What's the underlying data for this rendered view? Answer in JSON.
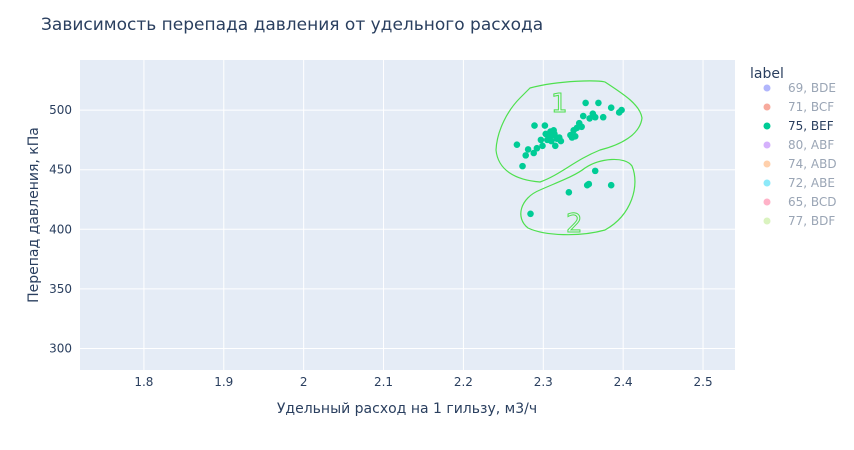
{
  "chart_data": {
    "type": "scatter",
    "title": "Зависимость перепада давления от удельного расхода",
    "xlabel": "Удельный  расход на 1 гильзу, м3/ч",
    "ylabel": "Перепад давления, кПа",
    "xlim": [
      1.72,
      2.54
    ],
    "ylim": [
      282,
      542
    ],
    "x_ticks": [
      1.8,
      1.9,
      2.0,
      2.1,
      2.2,
      2.3,
      2.4,
      2.5
    ],
    "x_tick_labels": [
      "1.8",
      "1.9",
      "2",
      "2.1",
      "2.2",
      "2.3",
      "2.4",
      "2.5"
    ],
    "y_ticks": [
      300,
      350,
      400,
      450,
      500
    ],
    "y_tick_labels": [
      "300",
      "350",
      "400",
      "450",
      "500"
    ],
    "grid": true,
    "legend_title": "label",
    "legend_position": "right",
    "series": [
      {
        "name": "69, BDE",
        "color": "#636efa",
        "visible": false,
        "points": []
      },
      {
        "name": "71, BCF",
        "color": "#ef553b",
        "visible": false,
        "points": []
      },
      {
        "name": "75, BEF",
        "color": "#00cc96",
        "visible": true,
        "points": [
          [
            2.284,
            413
          ],
          [
            2.332,
            431
          ],
          [
            2.355,
            437
          ],
          [
            2.357,
            438
          ],
          [
            2.365,
            449
          ],
          [
            2.385,
            437
          ],
          [
            2.267,
            471
          ],
          [
            2.274,
            453
          ],
          [
            2.278,
            462
          ],
          [
            2.281,
            467
          ],
          [
            2.288,
            464
          ],
          [
            2.289,
            487
          ],
          [
            2.292,
            468
          ],
          [
            2.297,
            475
          ],
          [
            2.299,
            470
          ],
          [
            2.302,
            487
          ],
          [
            2.303,
            480
          ],
          [
            2.305,
            475
          ],
          [
            2.307,
            477
          ],
          [
            2.309,
            482
          ],
          [
            2.31,
            474
          ],
          [
            2.312,
            479
          ],
          [
            2.313,
            483
          ],
          [
            2.314,
            480
          ],
          [
            2.315,
            470
          ],
          [
            2.317,
            476
          ],
          [
            2.32,
            477
          ],
          [
            2.322,
            474
          ],
          [
            2.334,
            479
          ],
          [
            2.336,
            477
          ],
          [
            2.338,
            483
          ],
          [
            2.34,
            478
          ],
          [
            2.342,
            485
          ],
          [
            2.345,
            489
          ],
          [
            2.348,
            486
          ],
          [
            2.35,
            495
          ],
          [
            2.353,
            506
          ],
          [
            2.358,
            493
          ],
          [
            2.362,
            497
          ],
          [
            2.365,
            494
          ],
          [
            2.369,
            506
          ],
          [
            2.375,
            494
          ],
          [
            2.385,
            502
          ],
          [
            2.395,
            498
          ],
          [
            2.398,
            500
          ]
        ]
      },
      {
        "name": "80, ABF",
        "color": "#ab63fa",
        "visible": false,
        "points": []
      },
      {
        "name": "74, ABD",
        "color": "#ffa15a",
        "visible": false,
        "points": []
      },
      {
        "name": "72, ABE",
        "color": "#19d3f3",
        "visible": false,
        "points": []
      },
      {
        "name": "65, BCD",
        "color": "#ff6692",
        "visible": false,
        "points": []
      },
      {
        "name": "77, BDF",
        "color": "#b6e880",
        "visible": false,
        "points": []
      }
    ],
    "annotations": [
      {
        "text": "1",
        "color": "#4ee04e"
      },
      {
        "text": "2",
        "color": "#4ee04e"
      }
    ]
  },
  "colors": {
    "plot_background": "#e5ecf6",
    "grid": "#ffffff",
    "text": "#2a3f5f",
    "legend_hidden_text": "#9aa5b5",
    "annotation_stroke": "#4ee04e"
  }
}
